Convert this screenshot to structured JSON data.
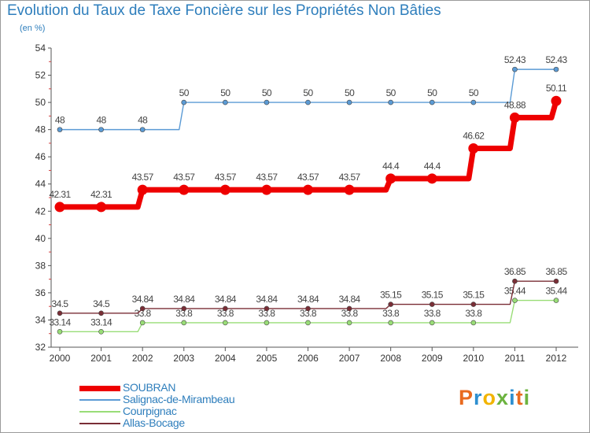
{
  "title": "Evolution du Taux de Taxe Foncière sur les Propriétés Non Bâties",
  "subtitle": "(en %)",
  "logo": {
    "letters": [
      "P",
      "r",
      "o",
      "x",
      "i",
      "t",
      "i"
    ],
    "colors": [
      "#e96a1f",
      "#2e8fd0",
      "#f2b400",
      "#6cb33f",
      "#2e8fd0",
      "#e96a1f",
      "#6cb33f"
    ]
  },
  "chart_data": {
    "type": "line",
    "title": "Evolution du Taux de Taxe Foncière sur les Propriétés Non Bâties",
    "ylabel": "(en %)",
    "xlabel": "",
    "x": [
      "2000",
      "2001",
      "2002",
      "2003",
      "2004",
      "2005",
      "2006",
      "2007",
      "2008",
      "2009",
      "2010",
      "2011",
      "2012"
    ],
    "ylim": [
      32,
      54
    ],
    "yticks": [
      32,
      34,
      36,
      38,
      40,
      42,
      44,
      46,
      48,
      50,
      52,
      54
    ],
    "grid": false,
    "legend": "bottom-left",
    "series": [
      {
        "name": "SOUBRAN",
        "color": "#ee0000",
        "bold": true,
        "values": [
          42.31,
          42.31,
          43.57,
          43.57,
          43.57,
          43.57,
          43.57,
          43.57,
          44.4,
          44.4,
          46.62,
          48.88,
          50.11
        ],
        "labels": [
          "42.31",
          "42.31",
          "43.57",
          "43.57",
          "43.57",
          "43.57",
          "43.57",
          "43.57",
          "44.4",
          "44.4",
          "46.62",
          "48.88",
          "50.11"
        ]
      },
      {
        "name": "Salignac-de-Mirambeau",
        "color": "#5b9bd5",
        "bold": false,
        "values": [
          48,
          48,
          48,
          50,
          50,
          50,
          50,
          50,
          50,
          50,
          50,
          52.43,
          52.43
        ],
        "labels": [
          "48",
          "48",
          "48",
          "50",
          "50",
          "50",
          "50",
          "50",
          "50",
          "50",
          "50",
          "52.43",
          "52.43"
        ]
      },
      {
        "name": "Courpignac",
        "color": "#99dd77",
        "bold": false,
        "values": [
          33.14,
          33.14,
          33.8,
          33.8,
          33.8,
          33.8,
          33.8,
          33.8,
          33.8,
          33.8,
          33.8,
          35.44,
          35.44
        ],
        "labels": [
          "33.14",
          "33.14",
          "33.8",
          "33.8",
          "33.8",
          "33.8",
          "33.8",
          "33.8",
          "33.8",
          "33.8",
          "33.8",
          "35.44",
          "35.44"
        ]
      },
      {
        "name": "Allas-Bocage",
        "color": "#7a2e36",
        "bold": false,
        "values": [
          34.5,
          34.5,
          34.84,
          34.84,
          34.84,
          34.84,
          34.84,
          34.84,
          35.15,
          35.15,
          35.15,
          36.85,
          36.85
        ],
        "labels": [
          "34.5",
          "34.5",
          "34.84",
          "34.84",
          "34.84",
          "34.84",
          "34.84",
          "34.84",
          "35.15",
          "35.15",
          "35.15",
          "36.85",
          "36.85"
        ]
      }
    ]
  }
}
